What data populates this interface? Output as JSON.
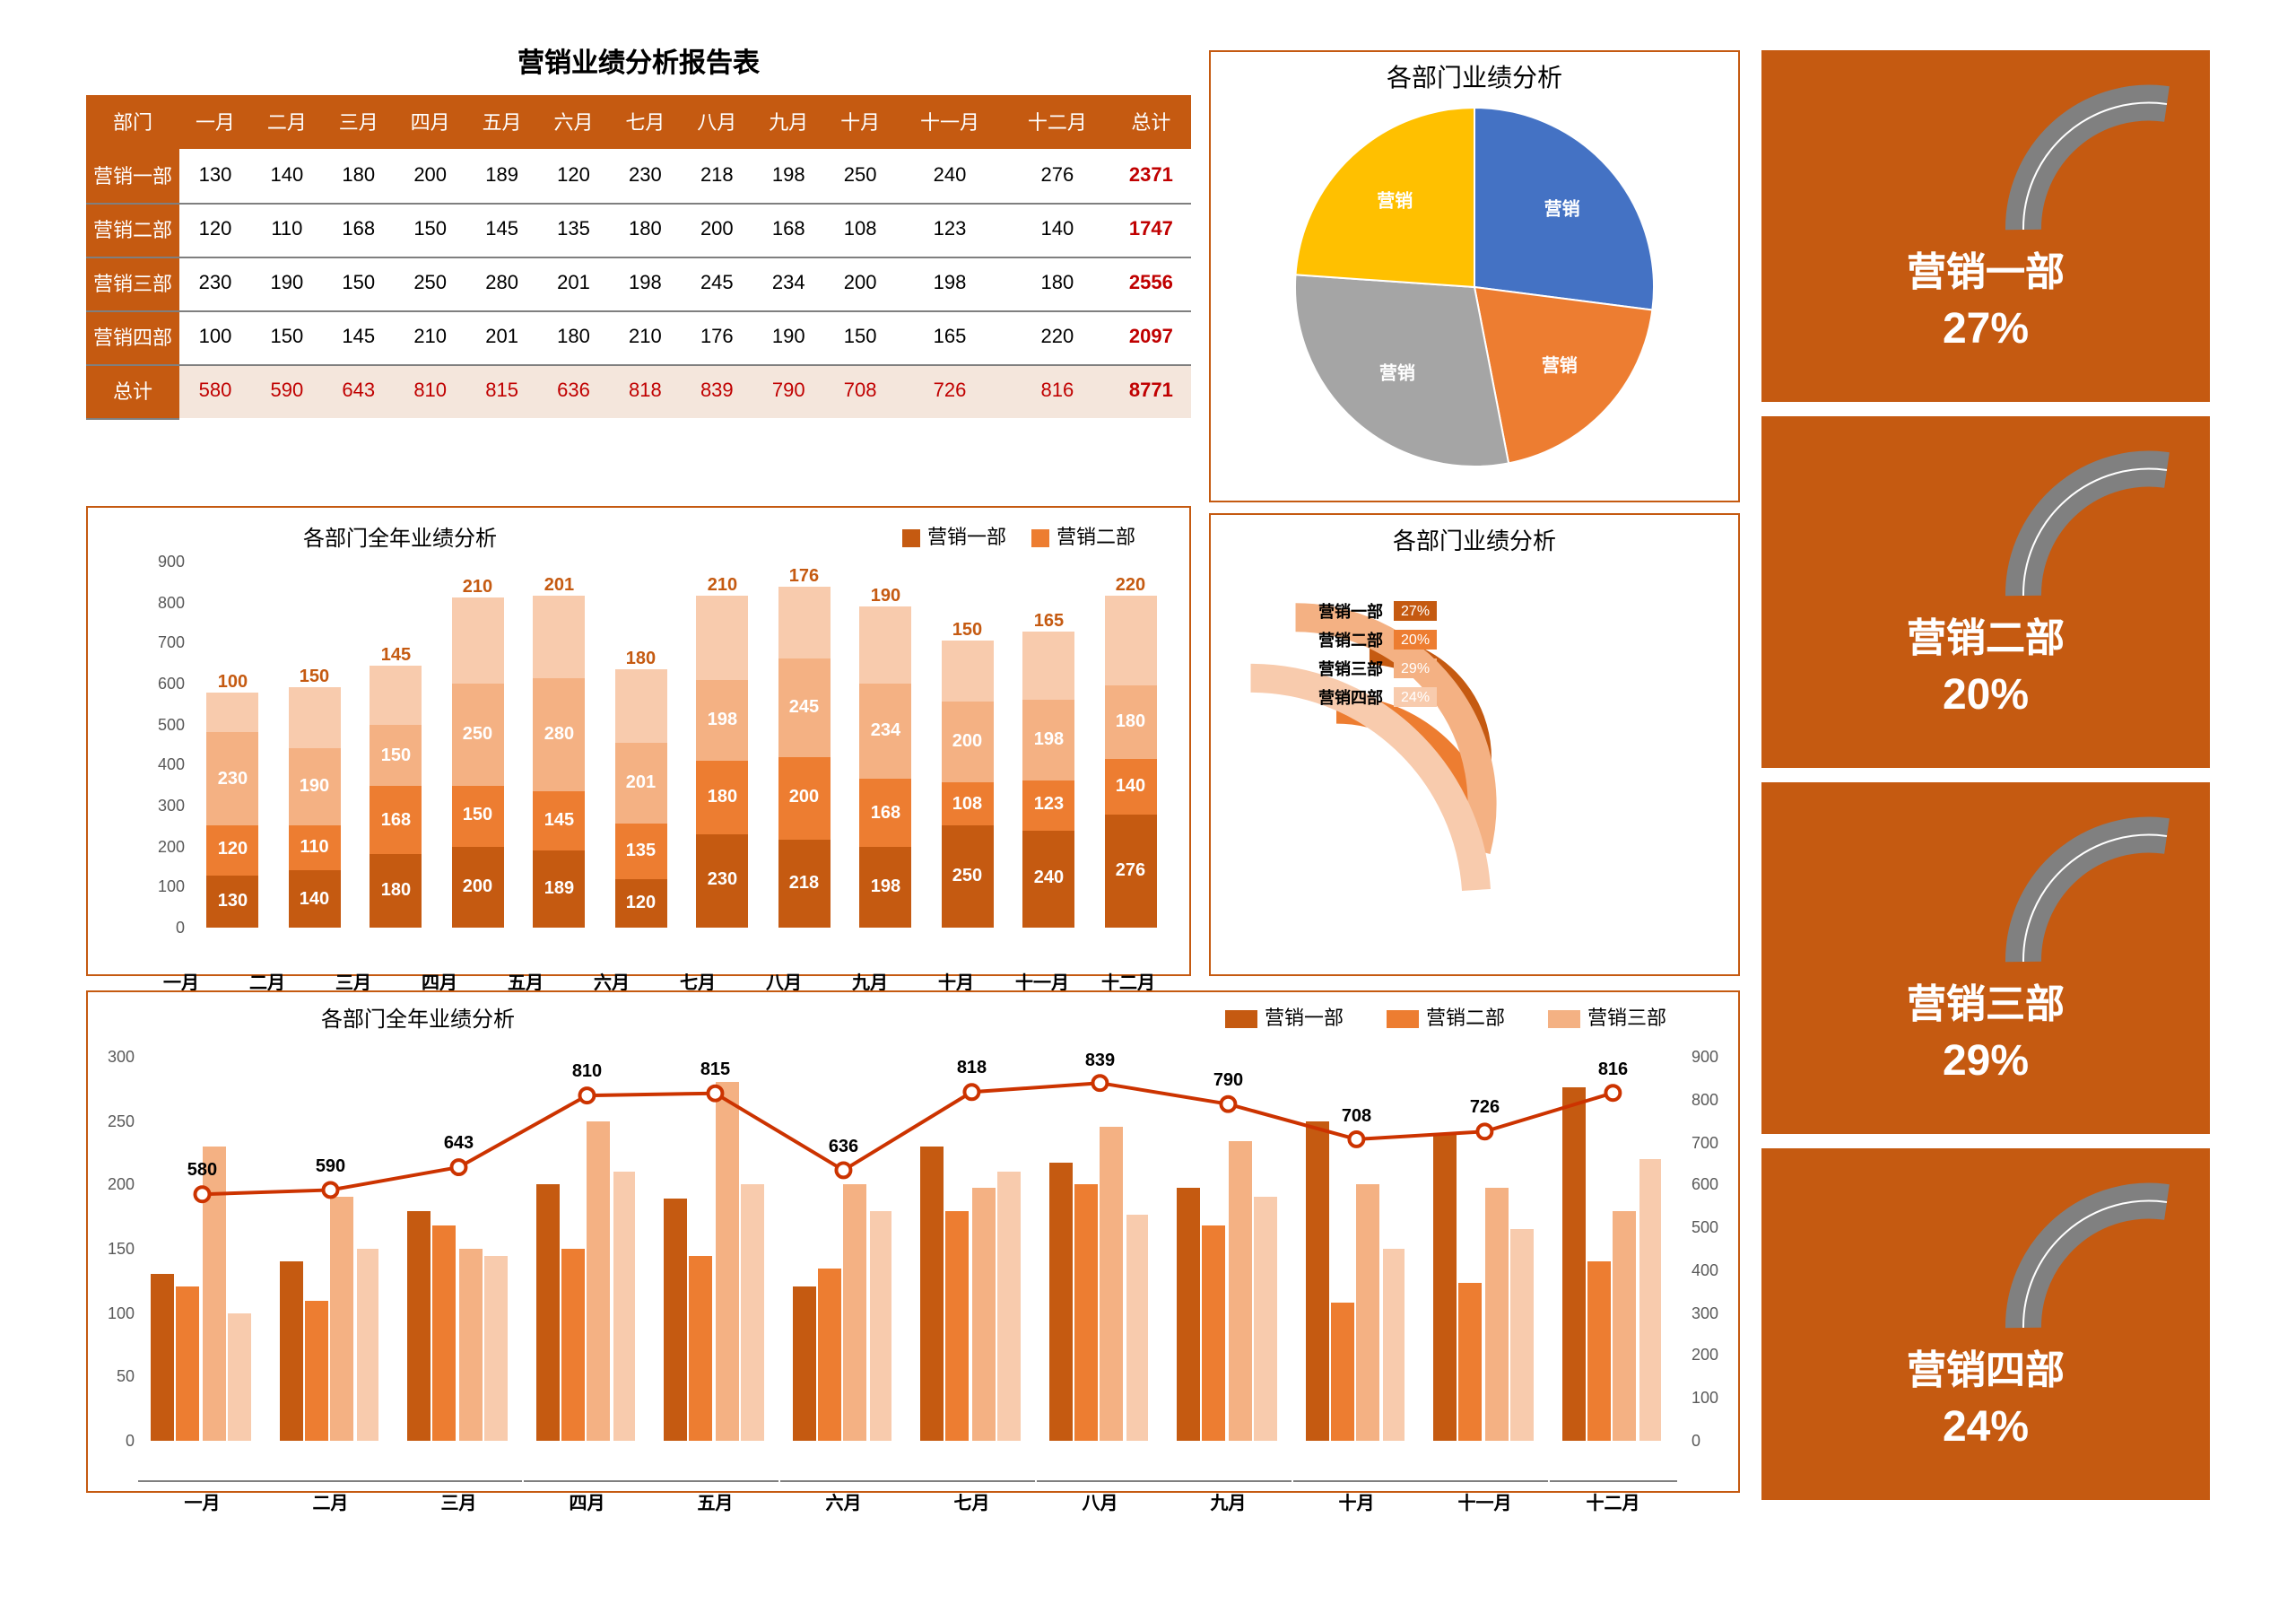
{
  "palette": {
    "primary": "#c55a11",
    "series": [
      "#c55a11",
      "#ed7d31",
      "#f4b183",
      "#f8cbad"
    ],
    "total_text": "#c00000",
    "grid": "#e6e6e6",
    "axis_text": "#595959",
    "card_arc": "#808080",
    "line": "#cc3300",
    "pie_colors": [
      "#4472c4",
      "#ed7d31",
      "#a5a5a5",
      "#ffc000"
    ]
  },
  "table": {
    "title": "营销业绩分析报告表",
    "col_headers": [
      "部门",
      "一月",
      "二月",
      "三月",
      "四月",
      "五月",
      "六月",
      "七月",
      "八月",
      "九月",
      "十月",
      "十一月",
      "十二月",
      "总计"
    ],
    "rows": [
      {
        "name": "营销一部",
        "values": [
          130,
          140,
          180,
          200,
          189,
          120,
          230,
          218,
          198,
          250,
          240,
          276
        ],
        "total": 2371
      },
      {
        "name": "营销二部",
        "values": [
          120,
          110,
          168,
          150,
          145,
          135,
          180,
          200,
          168,
          108,
          123,
          140
        ],
        "total": 1747
      },
      {
        "name": "营销三部",
        "values": [
          230,
          190,
          150,
          250,
          280,
          201,
          198,
          245,
          234,
          200,
          198,
          180
        ],
        "total": 2556
      },
      {
        "name": "营销四部",
        "values": [
          100,
          150,
          145,
          210,
          201,
          180,
          210,
          176,
          190,
          150,
          165,
          220
        ],
        "total": 2097
      }
    ],
    "total_row": {
      "name": "总计",
      "values": [
        580,
        590,
        643,
        810,
        815,
        636,
        818,
        839,
        790,
        708,
        726,
        816
      ],
      "total": 8771
    }
  },
  "stacked": {
    "title": "各部门全年业绩分析",
    "legend": [
      "营销一部",
      "营销二部"
    ],
    "categories": [
      "一月",
      "二月",
      "三月",
      "四月",
      "五月",
      "六月",
      "七月",
      "八月",
      "九月",
      "十月",
      "十一月",
      "十二月"
    ],
    "series": [
      {
        "name": "营销一部",
        "color": "#c55a11",
        "data": [
          130,
          140,
          180,
          200,
          189,
          120,
          230,
          218,
          198,
          250,
          240,
          276
        ]
      },
      {
        "name": "营销二部",
        "color": "#ed7d31",
        "data": [
          120,
          110,
          168,
          150,
          145,
          135,
          180,
          200,
          168,
          108,
          123,
          140
        ]
      },
      {
        "name": "营销三部",
        "color": "#f4b183",
        "data": [
          230,
          190,
          150,
          250,
          280,
          201,
          198,
          245,
          234,
          200,
          198,
          180
        ]
      },
      {
        "name": "营销四部",
        "color": "#f8cbad",
        "data": [
          100,
          150,
          145,
          210,
          201,
          180,
          210,
          176,
          190,
          150,
          165,
          220
        ]
      }
    ],
    "label_show_series": [
      0,
      1,
      2
    ],
    "top_label_series": 3,
    "ylim": [
      0,
      900
    ],
    "ytick_step": 100
  },
  "grouped": {
    "title": "各部门全年业绩分析",
    "legend": [
      "营销一部",
      "营销二部",
      "营销三部"
    ],
    "categories": [
      "一月",
      "二月",
      "三月",
      "四月",
      "五月",
      "六月",
      "七月",
      "八月",
      "九月",
      "十月",
      "十一月",
      "十二月"
    ],
    "bar_series": [
      {
        "name": "营销一部",
        "color": "#c55a11",
        "data": [
          130,
          140,
          180,
          200,
          189,
          120,
          230,
          218,
          198,
          250,
          240,
          276
        ]
      },
      {
        "name": "营销二部",
        "color": "#ed7d31",
        "data": [
          120,
          110,
          168,
          150,
          145,
          135,
          180,
          200,
          168,
          108,
          123,
          140
        ]
      },
      {
        "name": "营销三部",
        "color": "#f4b183",
        "data": [
          230,
          190,
          150,
          250,
          280,
          201,
          198,
          245,
          234,
          200,
          198,
          180
        ]
      },
      {
        "name": "营销四部",
        "color": "#f8cbad",
        "data": [
          100,
          150,
          145,
          210,
          201,
          180,
          210,
          176,
          190,
          150,
          165,
          220
        ]
      }
    ],
    "line_series": {
      "name": "总计",
      "color": "#cc3300",
      "data": [
        580,
        590,
        643,
        810,
        815,
        636,
        818,
        839,
        790,
        708,
        726,
        816
      ]
    },
    "ylim_left": [
      0,
      300
    ],
    "ytick_left": 50,
    "ylim_right": [
      0,
      900
    ],
    "ytick_right": 100
  },
  "pie": {
    "title": "各部门业绩分析",
    "slices": [
      {
        "name": "营销一部",
        "value": 2371,
        "pct": 27,
        "color": "#4472c4"
      },
      {
        "name": "营销二部",
        "value": 1747,
        "pct": 20,
        "color": "#ed7d31"
      },
      {
        "name": "营销三部",
        "value": 2556,
        "pct": 29,
        "color": "#a5a5a5"
      },
      {
        "name": "营销四部",
        "value": 2097,
        "pct": 24,
        "color": "#ffc000"
      }
    ]
  },
  "radial": {
    "title": "各部门业绩分析",
    "arcs": [
      {
        "name": "营销一部",
        "pct": 27,
        "color": "#c55a11"
      },
      {
        "name": "营销二部",
        "pct": 20,
        "color": "#ed7d31"
      },
      {
        "name": "营销三部",
        "pct": 29,
        "color": "#f4b183"
      },
      {
        "name": "营销四部",
        "pct": 24,
        "color": "#f8cbad"
      }
    ]
  },
  "cards": [
    {
      "name": "营销一部",
      "pct": "27%"
    },
    {
      "name": "营销二部",
      "pct": "20%"
    },
    {
      "name": "营销三部",
      "pct": "29%"
    },
    {
      "name": "营销四部",
      "pct": "24%"
    }
  ],
  "card_positions": [
    28,
    232,
    436,
    640
  ]
}
